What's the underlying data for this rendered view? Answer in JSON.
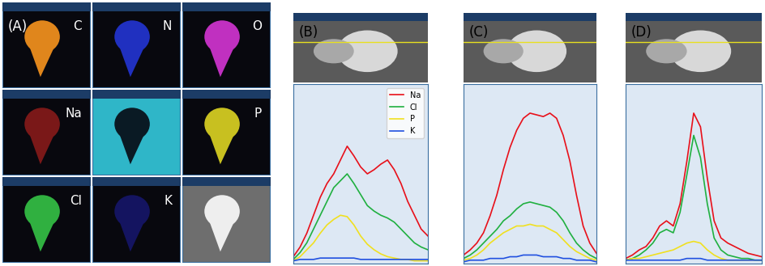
{
  "element_maps": {
    "title": "(A)",
    "maps": [
      {
        "label": "C",
        "color": "#e0861c"
      },
      {
        "label": "N",
        "color": "#2030c0"
      },
      {
        "label": "O",
        "color": "#c030c0"
      },
      {
        "label": "Na",
        "color": "#7a1818"
      },
      {
        "label": null,
        "color": "#2fb6c8"
      },
      {
        "label": "P",
        "color": "#c8c020"
      },
      {
        "label": "Cl",
        "color": "#30b040"
      },
      {
        "label": "K",
        "color": "#141460"
      },
      {
        "label": null,
        "color": "#eeeeee"
      }
    ]
  },
  "chart_data": [
    {
      "type": "line",
      "title": "(B)",
      "legend": "upper right",
      "tick_labels": false,
      "xlim": [
        0,
        10
      ],
      "ylim": [
        0,
        130
      ],
      "x": [
        0,
        0.5,
        1,
        1.5,
        2,
        2.5,
        3,
        3.5,
        4,
        4.5,
        5,
        5.5,
        6,
        6.5,
        7,
        7.5,
        8,
        8.5,
        9,
        9.5,
        10
      ],
      "series": [
        {
          "name": "Na",
          "color": "#e8101a",
          "values": [
            5,
            12,
            22,
            35,
            48,
            58,
            65,
            75,
            85,
            78,
            70,
            65,
            68,
            72,
            75,
            68,
            58,
            45,
            35,
            25,
            20
          ]
        },
        {
          "name": "Cl",
          "color": "#20b040",
          "values": [
            3,
            8,
            15,
            25,
            35,
            45,
            55,
            60,
            65,
            58,
            50,
            42,
            38,
            35,
            33,
            30,
            25,
            20,
            15,
            12,
            10
          ]
        },
        {
          "name": "P",
          "color": "#f0e020",
          "values": [
            2,
            5,
            10,
            15,
            22,
            28,
            32,
            35,
            34,
            28,
            20,
            14,
            10,
            7,
            5,
            4,
            3,
            3,
            2,
            2,
            2
          ]
        },
        {
          "name": "K",
          "color": "#2050e0",
          "values": [
            2,
            3,
            3,
            3,
            4,
            4,
            4,
            4,
            4,
            4,
            3,
            3,
            3,
            3,
            3,
            3,
            3,
            3,
            3,
            3,
            3
          ]
        }
      ]
    },
    {
      "type": "line",
      "title": "(C)",
      "tick_labels": false,
      "xlim": [
        0,
        10
      ],
      "ylim": [
        0,
        105
      ],
      "x": [
        0,
        0.5,
        1,
        1.5,
        2,
        2.5,
        3,
        3.5,
        4,
        4.5,
        5,
        5.5,
        6,
        6.5,
        7,
        7.5,
        8,
        8.5,
        9,
        9.5,
        10
      ],
      "series": [
        {
          "name": "Na",
          "color": "#e8101a",
          "values": [
            5,
            8,
            12,
            18,
            28,
            40,
            55,
            68,
            78,
            85,
            88,
            87,
            86,
            88,
            85,
            75,
            60,
            40,
            22,
            12,
            6
          ]
        },
        {
          "name": "Cl",
          "color": "#20b040",
          "values": [
            3,
            5,
            8,
            12,
            16,
            20,
            25,
            28,
            32,
            35,
            36,
            35,
            34,
            33,
            30,
            25,
            18,
            12,
            8,
            5,
            3
          ]
        },
        {
          "name": "P",
          "color": "#f0e020",
          "values": [
            2,
            3,
            5,
            8,
            12,
            15,
            18,
            20,
            22,
            22,
            23,
            22,
            22,
            20,
            18,
            14,
            10,
            7,
            5,
            3,
            2
          ]
        },
        {
          "name": "K",
          "color": "#2050e0",
          "values": [
            1,
            2,
            2,
            2,
            3,
            3,
            3,
            4,
            4,
            5,
            5,
            5,
            4,
            4,
            4,
            3,
            3,
            2,
            2,
            2,
            1
          ]
        }
      ]
    },
    {
      "type": "line",
      "title": "(D)",
      "tick_labels": false,
      "xlim": [
        0,
        10
      ],
      "ylim": [
        0,
        105
      ],
      "x": [
        0,
        0.5,
        1,
        1.5,
        2,
        2.5,
        3,
        3.5,
        4,
        4.5,
        5,
        5.5,
        6,
        6.5,
        7,
        7.5,
        8,
        8.5,
        9,
        9.5,
        10
      ],
      "series": [
        {
          "name": "Na",
          "color": "#e8101a",
          "values": [
            3,
            5,
            8,
            10,
            15,
            22,
            25,
            22,
            35,
            60,
            88,
            80,
            50,
            25,
            15,
            12,
            10,
            8,
            6,
            5,
            4
          ]
        },
        {
          "name": "Cl",
          "color": "#20b040",
          "values": [
            2,
            3,
            5,
            8,
            12,
            18,
            20,
            18,
            30,
            52,
            75,
            62,
            35,
            15,
            8,
            5,
            4,
            3,
            3,
            2,
            2
          ]
        },
        {
          "name": "P",
          "color": "#f0e020",
          "values": [
            2,
            3,
            3,
            4,
            5,
            6,
            7,
            8,
            10,
            12,
            13,
            12,
            8,
            5,
            3,
            2,
            2,
            2,
            2,
            2,
            2
          ]
        },
        {
          "name": "K",
          "color": "#2050e0",
          "values": [
            2,
            2,
            2,
            2,
            2,
            2,
            2,
            2,
            2,
            3,
            3,
            3,
            2,
            2,
            2,
            2,
            2,
            2,
            2,
            2,
            2
          ]
        }
      ]
    }
  ]
}
